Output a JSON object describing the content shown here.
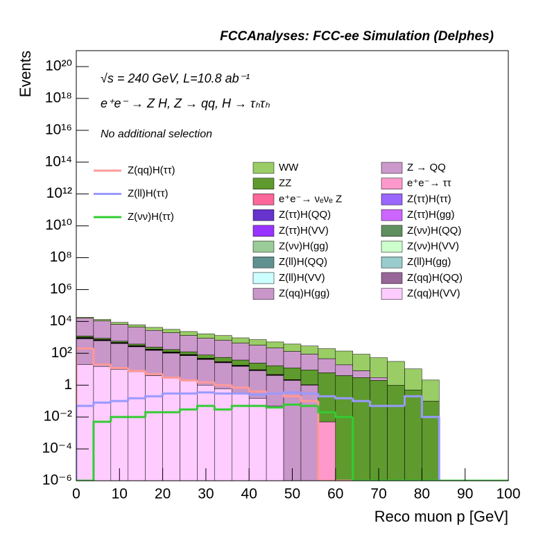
{
  "chart_data": {
    "type": "stacked_histogram",
    "title": "FCCAnalyses: FCC-ee Simulation (Delphes)",
    "x_label": "Reco muon p [GeV]",
    "y_label": "Events",
    "annotations": [
      "√s = 240 GeV, L=10.8 ab⁻¹",
      "e⁺e⁻ → Z H, Z → qq, H → τₕτₕ",
      "No additional selection"
    ],
    "log_y": true,
    "bins": [
      0,
      4,
      8,
      12,
      16,
      20,
      24,
      28,
      32,
      36,
      40,
      44,
      48,
      52,
      56,
      60,
      64,
      68,
      72,
      76,
      80,
      84,
      88,
      92,
      96,
      100
    ],
    "xlim": [
      0,
      100
    ],
    "xticks": [
      0,
      10,
      20,
      30,
      40,
      50,
      60,
      70,
      80,
      90,
      100
    ],
    "ylim": [
      1e-06,
      1e+21
    ],
    "yticks": [
      {
        "value": 1e-06,
        "label": "10⁻⁶"
      },
      {
        "value": 0.0001,
        "label": "10⁻⁴"
      },
      {
        "value": 0.01,
        "label": "10⁻²"
      },
      1,
      {
        "value": 100,
        "label": "10²"
      },
      {
        "value": 10000.0,
        "label": "10⁴"
      },
      {
        "value": 1000000.0,
        "label": "10⁶"
      },
      {
        "value": 100000000.0,
        "label": "10⁸"
      },
      {
        "value": 10000000000.0,
        "label": "10¹⁰"
      },
      {
        "value": 1000000000000.0,
        "label": "10¹²"
      },
      {
        "value": 100000000000000.0,
        "label": "10¹⁴"
      },
      {
        "value": 1e+16,
        "label": "10¹⁶"
      },
      {
        "value": 1e+18,
        "label": "10¹⁸"
      },
      {
        "value": 1e+20,
        "label": "10²⁰"
      }
    ],
    "series": [
      {
        "name": "WW",
        "color": "#9acd66",
        "values": [
          2000,
          2500,
          2200,
          1800,
          1500,
          1200,
          1000,
          800,
          650,
          500,
          400,
          300,
          250,
          200,
          150,
          120,
          80,
          50,
          30,
          10,
          2,
          0,
          0,
          0,
          0
        ]
      },
      {
        "name": "Z → QQ",
        "color": "#cc99cc",
        "values": [
          15000,
          10000,
          6000,
          4000,
          2500,
          1800,
          1200,
          800,
          600,
          400,
          300,
          200,
          120,
          80,
          40,
          15,
          5,
          1,
          0,
          0,
          0,
          0,
          0,
          0,
          0
        ]
      },
      {
        "name": "ZZ",
        "color": "#5e9a2e",
        "values": [
          200,
          150,
          100,
          80,
          60,
          50,
          40,
          30,
          25,
          20,
          15,
          12,
          10,
          8,
          6,
          4,
          3,
          2,
          1,
          0.5,
          0.1,
          0,
          0,
          0,
          0
        ]
      },
      {
        "name": "e⁺e⁻→ ττ",
        "color": "#ff99cc",
        "values": [
          80,
          30,
          10,
          5,
          3,
          2,
          1,
          0.6,
          0.4,
          0.2,
          0.1,
          0.05,
          0.03,
          0.01,
          0.005,
          0,
          0,
          0,
          0,
          0,
          0,
          0,
          0,
          0,
          0
        ]
      },
      {
        "name": "e⁺e⁻→ νₑνₑ Z",
        "color": "#ff6699",
        "values": [
          40,
          30,
          20,
          15,
          10,
          7,
          5,
          3,
          2,
          1,
          0.5,
          0.3,
          0.1,
          0.05,
          0,
          0,
          0,
          0,
          0,
          0,
          0,
          0,
          0,
          0,
          0
        ]
      },
      {
        "name": "Z(ττ)H(ττ)",
        "color": "#9966ff",
        "values": [
          5,
          3,
          2,
          1.5,
          1,
          0.7,
          0.5,
          0.3,
          0.2,
          0.1,
          0.05,
          0.02,
          0,
          0,
          0,
          0,
          0,
          0,
          0,
          0,
          0,
          0,
          0,
          0,
          0
        ]
      },
      {
        "name": "Z(ττ)H(QQ)",
        "color": "#6633cc",
        "values": [
          15,
          10,
          7,
          5,
          3,
          2,
          1.2,
          0.8,
          0.5,
          0.3,
          0.1,
          0.05,
          0,
          0,
          0,
          0,
          0,
          0,
          0,
          0,
          0,
          0,
          0,
          0,
          0
        ]
      },
      {
        "name": "Z(ττ)H(gg)",
        "color": "#cc66ff",
        "values": [
          1,
          0.8,
          0.5,
          0.3,
          0.2,
          0.1,
          0.05,
          0.03,
          0.02,
          0.01,
          0,
          0,
          0,
          0,
          0,
          0,
          0,
          0,
          0,
          0,
          0,
          0,
          0,
          0,
          0
        ]
      },
      {
        "name": "Z(ττ)H(VV)",
        "color": "#9933ff",
        "values": [
          4,
          3,
          2,
          1.2,
          0.8,
          0.5,
          0.3,
          0.2,
          0.1,
          0.05,
          0.02,
          0,
          0,
          0,
          0,
          0,
          0,
          0,
          0,
          0,
          0,
          0,
          0,
          0,
          0
        ]
      },
      {
        "name": "Z(νν)H(QQ)",
        "color": "#5f8f5f",
        "values": [
          3,
          2,
          1.5,
          1,
          0.6,
          0.4,
          0.2,
          0.1,
          0.05,
          0.02,
          0.01,
          0,
          0,
          0,
          0,
          0,
          0,
          0,
          0,
          0,
          0,
          0,
          0,
          0,
          0
        ]
      },
      {
        "name": "Z(νν)H(gg)",
        "color": "#99cc99",
        "values": [
          0.3,
          0.2,
          0.1,
          0.08,
          0.05,
          0.03,
          0.02,
          0.01,
          0,
          0,
          0,
          0,
          0,
          0,
          0,
          0,
          0,
          0,
          0,
          0,
          0,
          0,
          0,
          0,
          0
        ]
      },
      {
        "name": "Z(νν)H(VV)",
        "color": "#ccffcc",
        "values": [
          0.4,
          0.3,
          0.2,
          0.1,
          0.05,
          0.03,
          0.02,
          0.01,
          0,
          0,
          0,
          0,
          0,
          0,
          0,
          0,
          0,
          0,
          0,
          0,
          0,
          0,
          0,
          0,
          0
        ]
      },
      {
        "name": "Z(ll)H(QQ)",
        "color": "#5f9191",
        "values": [
          0.5,
          0.3,
          0.2,
          0.1,
          0.05,
          0.03,
          0.02,
          0.01,
          0.005,
          0,
          0,
          0,
          0,
          0,
          0,
          0,
          0,
          0,
          0,
          0,
          0,
          0,
          0,
          0,
          0
        ]
      },
      {
        "name": "Z(ll)H(gg)",
        "color": "#99cccc",
        "values": [
          0.05,
          0.03,
          0.02,
          0.01,
          0.005,
          0,
          0,
          0,
          0,
          0,
          0,
          0,
          0,
          0,
          0,
          0,
          0,
          0,
          0,
          0,
          0,
          0,
          0,
          0,
          0
        ]
      },
      {
        "name": "Z(ll)H(VV)",
        "color": "#ccffff",
        "values": [
          0.1,
          0.06,
          0.04,
          0.02,
          0.01,
          0.005,
          0,
          0,
          0,
          0,
          0,
          0,
          0,
          0,
          0,
          0,
          0,
          0,
          0,
          0,
          0,
          0,
          0,
          0,
          0
        ]
      },
      {
        "name": "Z(qq)H(QQ)",
        "color": "#996699",
        "values": [
          60,
          40,
          25,
          15,
          10,
          6,
          4,
          2.5,
          1.5,
          0.8,
          0.4,
          0.2,
          0.1,
          0,
          0,
          0,
          0,
          0,
          0,
          0,
          0,
          0,
          0,
          0,
          0
        ]
      },
      {
        "name": "Z(qq)H(gg)",
        "color": "#c896c8",
        "values": [
          800,
          600,
          400,
          250,
          150,
          100,
          70,
          40,
          25,
          15,
          8,
          4,
          2,
          1,
          0,
          0,
          0,
          0,
          0,
          0,
          0,
          0,
          0,
          0,
          0
        ]
      },
      {
        "name": "Z(qq)H(VV)",
        "color": "#ffccff",
        "values": [
          20,
          15,
          10,
          7,
          4,
          3,
          2,
          1,
          0.6,
          0.3,
          0.15,
          0.05,
          0,
          0,
          0,
          0,
          0,
          0,
          0,
          0,
          0,
          0,
          0,
          0,
          0
        ]
      }
    ],
    "overlay_series": [
      {
        "name": "Z(qq)H(ττ)",
        "color": "#ff9999",
        "values": [
          200,
          20,
          12,
          8,
          5,
          3,
          2,
          1.5,
          1,
          0.7,
          0.4,
          0.3,
          0.2,
          0.1,
          0,
          0,
          0,
          0,
          0,
          0,
          0,
          0,
          0,
          0,
          0
        ]
      },
      {
        "name": "Z(ll)H(ττ)",
        "color": "#9999ff",
        "values": [
          0.05,
          0.08,
          0.1,
          0.15,
          0.2,
          0.3,
          0.3,
          0.35,
          0.3,
          0.3,
          0.25,
          0.3,
          0.35,
          0.3,
          0.2,
          0.15,
          0.1,
          0.05,
          0.05,
          0.2,
          0.01,
          0,
          0,
          0,
          0
        ]
      },
      {
        "name": "Z(νν)H(ττ)",
        "color": "#33cc33",
        "values": [
          0,
          0.005,
          0.01,
          0.01,
          0.02,
          0.02,
          0.03,
          0.05,
          0.03,
          0.05,
          0.05,
          0.04,
          0.06,
          0.05,
          0.02,
          0.01,
          0,
          0,
          0,
          0,
          0,
          0,
          0,
          0,
          0
        ]
      }
    ]
  }
}
